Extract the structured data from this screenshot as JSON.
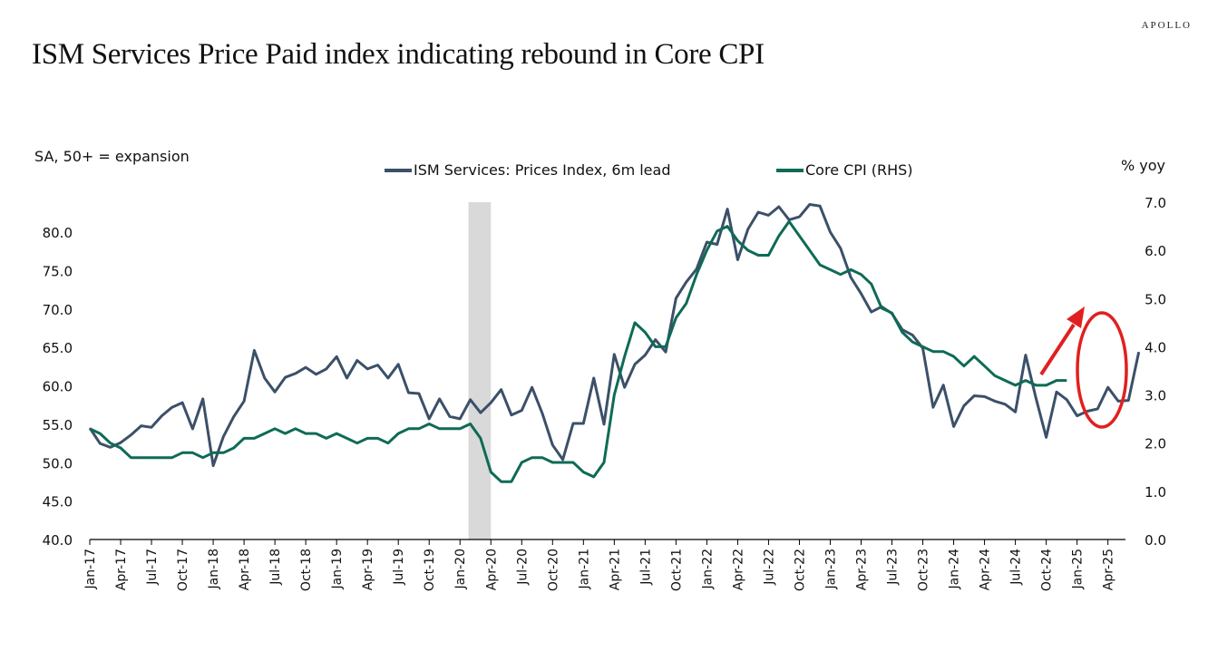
{
  "brand": "APOLLO",
  "title": "ISM Services Price Paid index indicating rebound in Core CPI",
  "chart_data": {
    "type": "line",
    "title": "ISM Services Price Paid index indicating rebound in Core CPI",
    "left_axis_note": "SA, 50+ = expansion",
    "right_axis_note": "% yoy",
    "x_start": "Jan-17",
    "x_tick_labels": [
      "Jan-17",
      "Apr-17",
      "Jul-17",
      "Oct-17",
      "Jan-18",
      "Apr-18",
      "Jul-18",
      "Oct-18",
      "Jan-19",
      "Apr-19",
      "Jul-19",
      "Oct-19",
      "Jan-20",
      "Apr-20",
      "Jul-20",
      "Oct-20",
      "Jan-21",
      "Apr-21",
      "Jul-21",
      "Oct-21",
      "Jan-22",
      "Apr-22",
      "Jul-22",
      "Oct-22",
      "Jan-23",
      "Apr-23",
      "Jul-23",
      "Oct-23",
      "Jan-24",
      "Apr-24",
      "Jul-24",
      "Oct-24",
      "Jan-25",
      "Apr-25"
    ],
    "y_left": {
      "label": "",
      "ylim": [
        40,
        80
      ],
      "ticks": [
        "40.0",
        "45.0",
        "50.0",
        "55.0",
        "60.0",
        "65.0",
        "70.0",
        "75.0",
        "80.0"
      ]
    },
    "y_right": {
      "label": "% yoy",
      "ylim": [
        0,
        7
      ],
      "ticks": [
        "0.0",
        "1.0",
        "2.0",
        "3.0",
        "4.0",
        "5.0",
        "6.0",
        "7.0"
      ]
    },
    "grid": false,
    "legend_position": "top-center",
    "recession_shading": {
      "start_month_index": 37,
      "end_month_index": 39,
      "color": "#d9d9d9"
    },
    "series": [
      {
        "name": "ISM Services: Prices Index, 6m lead",
        "axis": "left",
        "color": "#3b5069",
        "start_month_index": 0,
        "values": [
          54.5,
          52.5,
          52.0,
          52.6,
          53.6,
          54.8,
          54.6,
          56.1,
          57.2,
          57.8,
          54.4,
          58.3,
          49.6,
          53.4,
          56.0,
          58.0,
          64.6,
          61.0,
          59.2,
          61.1,
          61.6,
          62.4,
          61.5,
          62.2,
          63.8,
          61.0,
          63.3,
          62.2,
          62.7,
          61.0,
          62.8,
          59.1,
          59.0,
          55.7,
          58.3,
          56.0,
          55.7,
          58.2,
          56.5,
          57.8,
          59.5,
          56.2,
          56.8,
          59.8,
          56.4,
          52.3,
          50.4,
          55.1,
          55.1,
          61.0,
          55.0,
          64.1,
          59.8,
          62.8,
          64.0,
          66.0,
          64.4,
          71.4,
          73.5,
          75.2,
          78.7,
          78.4,
          83.0,
          76.4,
          80.4,
          82.6,
          82.2,
          83.3,
          81.6,
          82.0,
          83.6,
          83.4,
          80.0,
          77.9,
          74.1,
          72.0,
          69.6,
          70.3,
          69.4,
          67.3,
          66.6,
          64.9,
          57.2,
          60.1,
          54.7,
          57.4,
          58.7,
          58.6,
          58.0,
          57.6,
          56.6,
          64.0,
          58.4,
          53.3,
          59.2,
          58.2,
          56.1,
          56.7,
          57.0,
          59.8,
          58.0,
          58.1,
          64.4
        ],
        "visible_values_note": "ISM series plotted with 6-month lead; last point aligned to Apr-25"
      },
      {
        "name": "Core CPI (RHS)",
        "axis": "right",
        "color": "#0e6b55",
        "start_month_index": 0,
        "values": [
          2.3,
          2.2,
          2.0,
          1.9,
          1.7,
          1.7,
          1.7,
          1.7,
          1.7,
          1.8,
          1.8,
          1.7,
          1.8,
          1.8,
          1.9,
          2.1,
          2.1,
          2.2,
          2.3,
          2.2,
          2.3,
          2.2,
          2.2,
          2.1,
          2.2,
          2.1,
          2.0,
          2.1,
          2.1,
          2.0,
          2.2,
          2.3,
          2.3,
          2.4,
          2.3,
          2.3,
          2.3,
          2.4,
          2.1,
          1.4,
          1.2,
          1.2,
          1.6,
          1.7,
          1.7,
          1.6,
          1.6,
          1.6,
          1.4,
          1.3,
          1.6,
          3.0,
          3.8,
          4.5,
          4.3,
          4.0,
          4.0,
          4.6,
          4.9,
          5.5,
          6.0,
          6.4,
          6.5,
          6.2,
          6.0,
          5.9,
          5.9,
          6.3,
          6.6,
          6.3,
          6.0,
          5.7,
          5.6,
          5.5,
          5.6,
          5.5,
          5.3,
          4.8,
          4.7,
          4.3,
          4.1,
          4.0,
          3.9,
          3.9,
          3.8,
          3.6,
          3.8,
          3.6,
          3.4,
          3.3,
          3.2,
          3.3,
          3.2,
          3.2,
          3.3,
          3.3
        ]
      }
    ],
    "annotations": [
      {
        "type": "arrow",
        "color": "#e02020",
        "description": "red arrow pointing up-right from end of Core CPI line"
      },
      {
        "type": "ellipse",
        "color": "#e02020",
        "description": "red ellipse around latest ISM values (Jan-25 to Apr-25)"
      }
    ]
  }
}
